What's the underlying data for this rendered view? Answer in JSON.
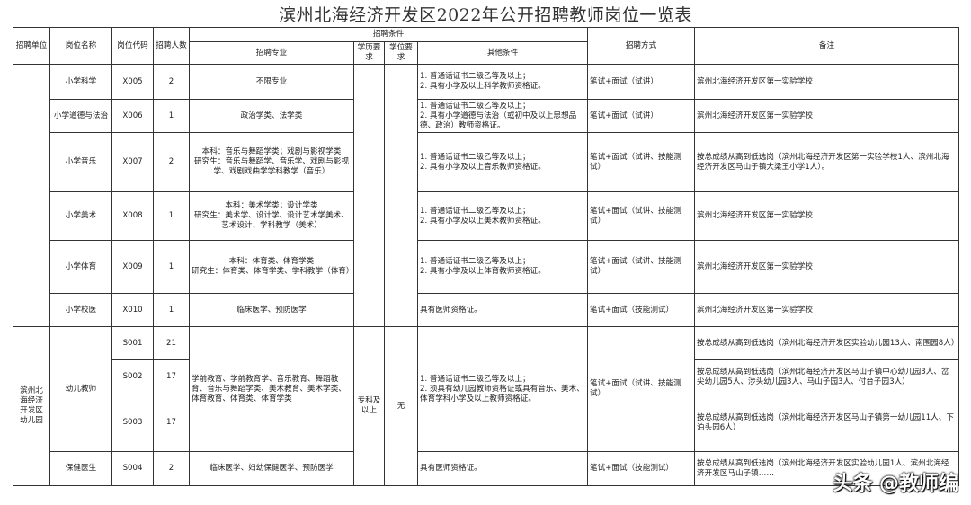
{
  "title": "滨州北海经济开发区2022年公开招聘教师岗位一览表",
  "headers": {
    "unit": "招聘单位",
    "position": "岗位名称",
    "code": "岗位代码",
    "count": "招聘人数",
    "conditions": "招聘条件",
    "major": "招聘专业",
    "education": "学历要求",
    "degree": "学位要求",
    "other": "其他条件",
    "method": "招聘方式",
    "notes": "备注"
  },
  "primary": [
    {
      "position": "小学科学",
      "code": "X005",
      "count": "2",
      "major": "不限专业",
      "other": "1. 普通话证书二级乙等及以上；\n2. 具有小学及以上科学教师资格证。",
      "method": "笔试+面试（试讲）",
      "notes": "滨州北海经济开发区第一实验学校"
    },
    {
      "position": "小学道德与法治",
      "code": "X006",
      "count": "1",
      "major": "政治学类、法学类",
      "other": "1. 普通话证书二级乙等及以上；\n2. 具有小学道德与法治（或初中及以上思想品德、政治）教师资格证。",
      "method": "笔试+面试（试讲）",
      "notes": "滨州北海经济开发区第一实验学校"
    },
    {
      "position": "小学音乐",
      "code": "X007",
      "count": "2",
      "major": "本科：音乐与舞蹈学类；戏剧与影视学类\n研究生：音乐与舞蹈学、音乐学、戏剧与影视学、戏剧戏曲学学科教学（音乐）",
      "other": "1. 普通话证书二级乙等及以上；\n2. 具有小学及以上音乐教师资格证。",
      "method": "笔试+面试（试讲、技能测试）",
      "notes": "按总成绩从高到低选岗（滨州北海经济开发区第一实验学校1人、滨州北海经济开发区马山子镇大梁王小学1人）。"
    },
    {
      "position": "小学美术",
      "code": "X008",
      "count": "1",
      "major": "本科：美术学类；设计学类\n研究生：美术学、设计学、设计艺术学美术、艺术设计、学科教学（美术）",
      "other": "1. 普通话证书二级乙等及以上；\n2. 具有小学及以上美术教师资格证。",
      "method": "笔试+面试（试讲、技能测试）",
      "notes": "滨州北海经济开发区第一实验学校"
    },
    {
      "position": "小学体育",
      "code": "X009",
      "count": "1",
      "major": "本科：体育类、体育学类\n研究生：体育类、体育学类、学科教学（体育）",
      "other": "1. 普通话证书二级乙等及以上；\n2. 具有小学及以上体育教师资格证。",
      "method": "笔试+面试（试讲、技能测试）",
      "notes": "滨州北海经济开发区第一实验学校"
    },
    {
      "position": "小学校医",
      "code": "X010",
      "count": "1",
      "major": "临床医学、预防医学",
      "other": "具有医师资格证。",
      "method": "笔试+面试（技能测试）",
      "notes": "滨州北海经济开发区第一实验学校"
    }
  ],
  "kindergarten": {
    "unit": "滨州北海经济开发区幼儿园",
    "education": "专科及以上",
    "degree": "无",
    "teacher": {
      "position": "幼儿教师",
      "major": "学前教育、学前教育学、音乐教育、舞蹈教育、音乐与舞蹈学类、美术教育、美术学类、体育教育、体育类、体育学类",
      "other": "1. 普通话证书二级乙等及以上；\n2. 须具有幼儿园教师资格证或具有音乐、美术、体育学科小学及以上教师资格证。",
      "method": "笔试+面试（试讲、技能测试）",
      "rows": [
        {
          "code": "S001",
          "count": "21",
          "notes": "按总成绩从高到低选岗（滨州北海经济开发区实验幼儿园13人、南围园8人）"
        },
        {
          "code": "S002",
          "count": "17",
          "notes": "按总成绩从高到低选岗（滨州北海经济开发区马山子镇中心幼儿园3人、岔尖幼儿园5人、涉头幼儿园3人、马山子园3人、付台子园3人）"
        },
        {
          "code": "S003",
          "count": "17",
          "notes": "按总成绩从高到低选岗（滨州北海经济开发区马山子镇第一幼儿园11人、下泊头园6人）"
        }
      ]
    },
    "doctor": {
      "position": "保健医生",
      "code": "S004",
      "count": "2",
      "major": "临床医学、妇幼保健医学、预防医学",
      "other": "具有医师资格证。",
      "method": "笔试+面试（技能测试）",
      "notes": "按总成绩从高到低选岗（滨州北海经济开发区实验幼儿园1人、滨州北海经济开发区马山子镇……"
    }
  },
  "watermark": "头条 @教师编"
}
